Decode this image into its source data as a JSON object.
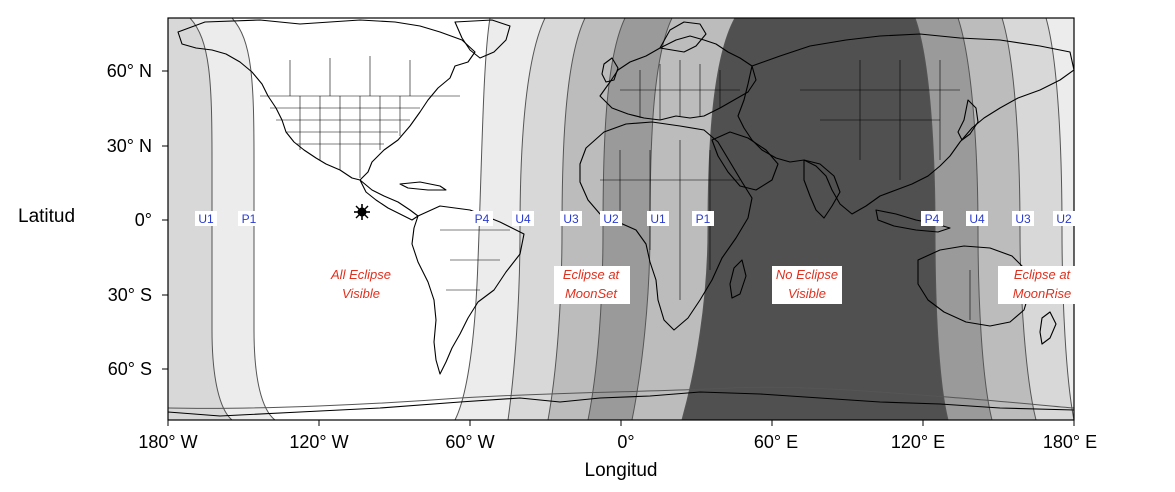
{
  "axes": {
    "xlabel": "Longitud",
    "ylabel": "Latitud",
    "x_ticks": [
      "180° W",
      "120° W",
      "60° W",
      "0°",
      "60° E",
      "120° E",
      "180° E"
    ],
    "y_ticks": [
      "60° N",
      "30° N",
      "0°",
      "30° S",
      "60° S"
    ],
    "x_range_deg": [
      -180,
      180
    ],
    "y_range_deg": [
      -80,
      78
    ]
  },
  "contacts_west": [
    "U1",
    "P1",
    "P4",
    "U4",
    "U3",
    "U2",
    "U1",
    "P1"
  ],
  "contacts_east": [
    "P4",
    "U4",
    "U3",
    "U2"
  ],
  "regions": {
    "all_visible": [
      "All Eclipse",
      "Visible"
    ],
    "moonset": [
      "Eclipse at",
      "MoonSet"
    ],
    "none_visible": [
      "No Eclipse",
      "Visible"
    ],
    "moonrise": [
      "Eclipse at",
      "MoonRise"
    ]
  },
  "shading": {
    "white": "#ffffff",
    "light": "#ececec",
    "light_mid": "#d8d8d8",
    "mid": "#bcbcbc",
    "dark_mid": "#9a9a9a",
    "dark": "#505050"
  },
  "subsolar_marker_icon": "star-burst-icon"
}
